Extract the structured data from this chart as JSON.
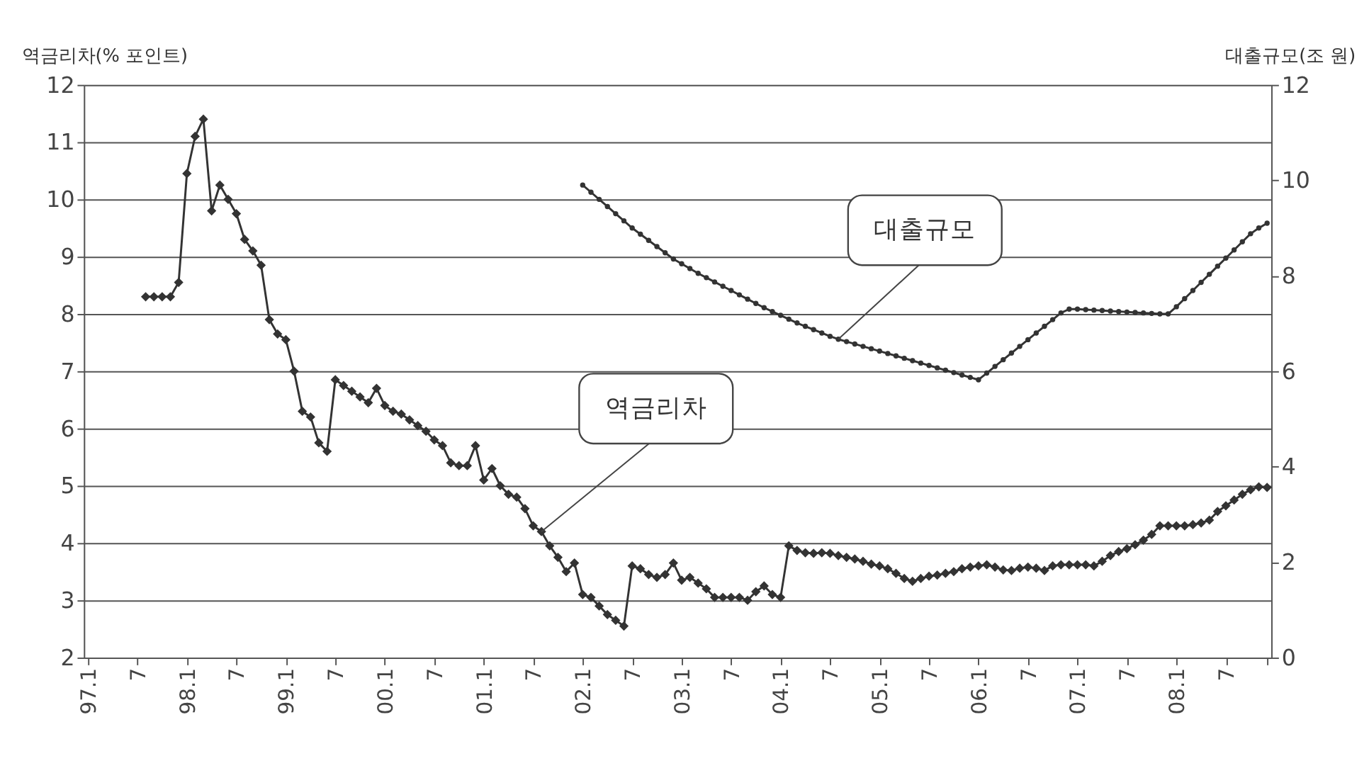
{
  "chart_data": {
    "type": "line",
    "ylabel": "역금리차(% 포인트)",
    "y2label": "대출규모(조 원)",
    "categories": [
      "97.1",
      null,
      null,
      null,
      null,
      null,
      "7",
      null,
      null,
      null,
      null,
      null,
      "98.1",
      null,
      null,
      null,
      null,
      null,
      "7",
      null,
      null,
      null,
      null,
      null,
      "99.1",
      null,
      null,
      null,
      null,
      null,
      "7",
      null,
      null,
      null,
      null,
      null,
      "00.1",
      null,
      null,
      null,
      null,
      null,
      "7",
      null,
      null,
      null,
      null,
      null,
      "01.1",
      null,
      null,
      null,
      null,
      null,
      "7",
      null,
      null,
      null,
      null,
      null,
      "02.1",
      null,
      null,
      null,
      null,
      null,
      "7",
      null,
      null,
      null,
      null,
      null,
      "03.1",
      null,
      null,
      null,
      null,
      null,
      "7",
      null,
      null,
      null,
      null,
      null,
      "04.1",
      null,
      null,
      null,
      null,
      null,
      "7",
      null,
      null,
      null,
      null,
      null,
      "05.1",
      null,
      null,
      null,
      null,
      null,
      "7",
      null,
      null,
      null,
      null,
      null,
      "06.1",
      null,
      null,
      null,
      null,
      null,
      "7",
      null,
      null,
      null,
      null,
      null,
      "07.1",
      null,
      null,
      null,
      null,
      null,
      "7",
      null,
      null,
      null,
      null,
      null,
      "08.1",
      null,
      null,
      null,
      null,
      null,
      "7",
      null,
      null,
      null,
      null,
      null
    ],
    "series": [
      {
        "name": "역금리차",
        "color": "#333333",
        "marker": "diamond",
        "values": [
          null,
          null,
          null,
          null,
          null,
          null,
          null,
          8.3,
          8.3,
          8.3,
          8.3,
          8.55,
          10.45,
          11.1,
          11.4,
          9.8,
          10.25,
          10.0,
          9.75,
          9.3,
          9.1,
          8.85,
          7.9,
          7.65,
          7.55,
          7.0,
          6.3,
          6.2,
          5.75,
          5.6,
          6.85,
          6.75,
          6.65,
          6.55,
          6.45,
          6.7,
          6.4,
          6.3,
          6.25,
          6.15,
          6.05,
          5.95,
          5.8,
          5.7,
          5.4,
          5.35,
          5.35,
          5.7,
          5.1,
          5.3,
          5.0,
          4.85,
          4.8,
          4.6,
          4.3,
          4.2,
          3.95,
          3.75,
          3.5,
          3.65,
          3.1,
          3.05,
          2.9,
          2.75,
          2.65,
          2.55,
          3.6,
          3.55,
          3.45,
          3.4,
          3.45,
          3.65,
          3.35,
          3.4,
          3.3,
          3.2,
          3.05,
          3.05,
          3.05,
          3.05,
          3.0,
          3.15,
          3.25,
          3.1,
          3.05,
          3.95,
          3.87,
          3.83,
          3.82,
          3.83,
          3.82,
          3.78,
          3.75,
          3.72,
          3.68,
          3.63,
          3.6,
          3.55,
          3.47,
          3.38,
          3.33,
          3.38,
          3.42,
          3.44,
          3.47,
          3.5,
          3.55,
          3.58,
          3.6,
          3.62,
          3.58,
          3.53,
          3.52,
          3.56,
          3.58,
          3.56,
          3.52,
          3.6,
          3.62,
          3.62,
          3.62,
          3.62,
          3.6,
          3.68,
          3.78,
          3.85,
          3.9,
          3.97,
          4.05,
          4.15,
          4.3,
          4.3,
          4.3,
          4.3,
          4.32,
          4.35,
          4.4,
          4.55,
          4.65,
          4.75,
          4.85,
          4.93,
          4.98,
          4.97
        ]
      },
      {
        "name": "대출규모",
        "color": "#333333",
        "marker": "circle",
        "axis": "y2",
        "values": [
          null,
          null,
          null,
          null,
          null,
          null,
          null,
          null,
          null,
          null,
          null,
          null,
          null,
          null,
          null,
          null,
          null,
          null,
          null,
          null,
          null,
          null,
          null,
          null,
          null,
          null,
          null,
          null,
          null,
          null,
          null,
          null,
          null,
          null,
          null,
          null,
          null,
          null,
          null,
          null,
          null,
          null,
          null,
          null,
          null,
          null,
          null,
          null,
          null,
          null,
          null,
          null,
          null,
          null,
          null,
          null,
          null,
          null,
          null,
          null,
          9.9,
          9.75,
          9.6,
          9.45,
          9.3,
          9.15,
          9.0,
          8.87,
          8.74,
          8.61,
          8.48,
          8.35,
          8.25,
          8.15,
          8.05,
          7.96,
          7.87,
          7.78,
          7.69,
          7.6,
          7.51,
          7.42,
          7.33,
          7.25,
          7.17,
          7.09,
          7.01,
          6.94,
          6.87,
          6.8,
          6.73,
          6.67,
          6.62,
          6.57,
          6.52,
          6.47,
          6.42,
          6.37,
          6.32,
          6.27,
          6.22,
          6.17,
          6.12,
          6.07,
          6.02,
          5.97,
          5.92,
          5.87,
          5.82,
          5.96,
          6.1,
          6.24,
          6.38,
          6.52,
          6.66,
          6.8,
          6.94,
          7.08,
          7.22,
          7.3,
          7.3,
          7.29,
          7.28,
          7.27,
          7.26,
          7.25,
          7.24,
          7.23,
          7.22,
          7.21,
          7.2,
          7.2,
          7.35,
          7.52,
          7.69,
          7.86,
          8.03,
          8.2,
          8.37,
          8.54,
          8.71,
          8.88,
          9.0,
          9.1
        ]
      }
    ],
    "ylim": [
      2,
      12
    ],
    "yticks": [
      2,
      3,
      4,
      5,
      6,
      7,
      8,
      9,
      10,
      11,
      12
    ],
    "y2lim": [
      0,
      12
    ],
    "y2ticks": [
      0,
      2,
      4,
      6,
      8,
      10,
      12
    ],
    "grid": "y"
  }
}
